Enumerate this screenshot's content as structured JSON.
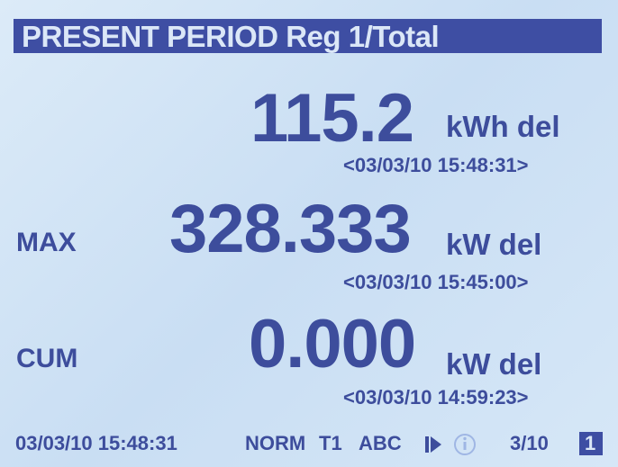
{
  "header": {
    "title": "PRESENT PERIOD  Reg 1/Total"
  },
  "readings": [
    {
      "value": "115.2",
      "unit": "kWh del",
      "timestamp": "<03/03/10 15:48:31>"
    },
    {
      "label": "MAX",
      "value": "328.333",
      "unit": "kW del",
      "timestamp": "<03/03/10 15:45:00>"
    },
    {
      "label": "CUM",
      "value": "0.000",
      "unit": "kW del",
      "timestamp": "<03/03/10 14:59:23>"
    }
  ],
  "status_bar": {
    "datetime": "03/03/10 15:48:31",
    "mode": "NORM",
    "tariff": "T1",
    "phases": "ABC",
    "page": "3/10",
    "screen": "1"
  }
}
